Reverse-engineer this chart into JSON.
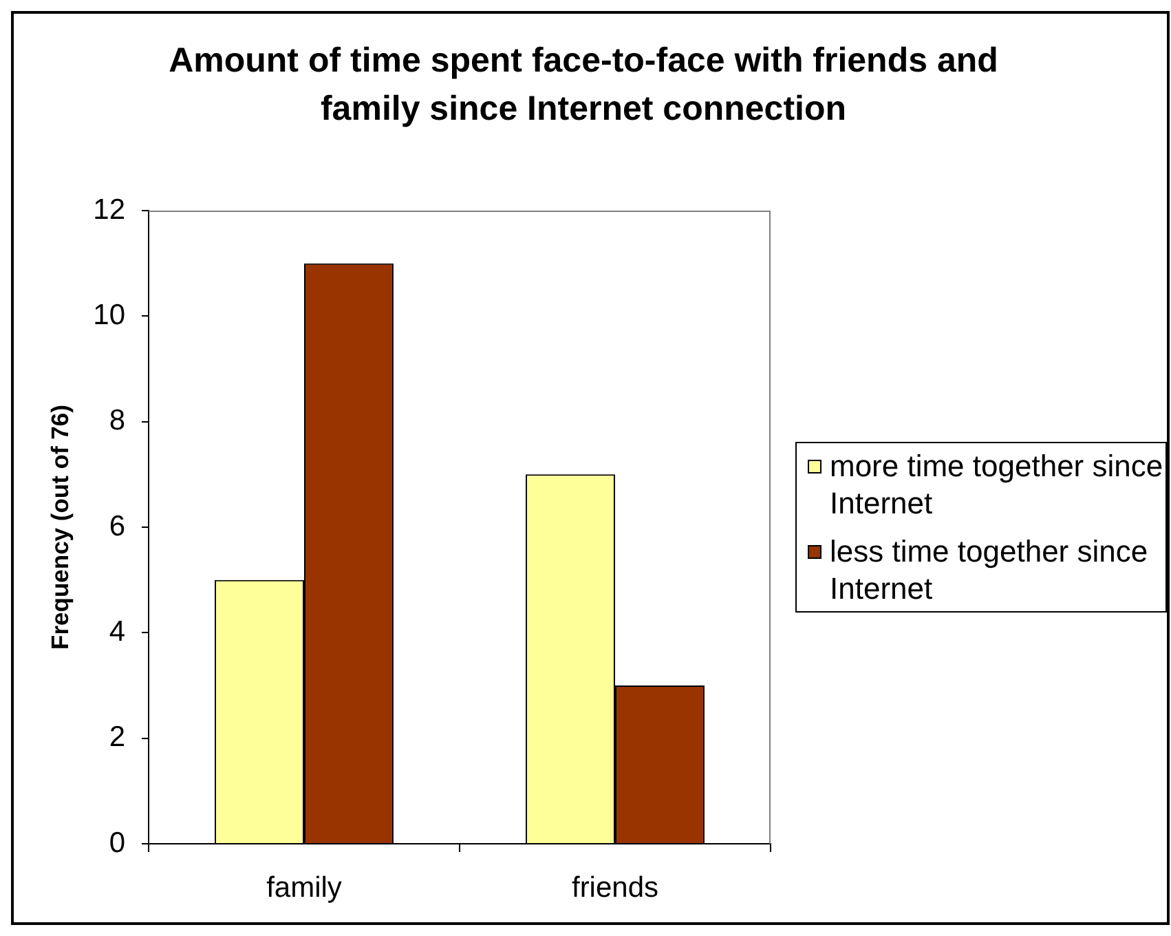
{
  "chart_data": {
    "type": "bar",
    "title": "Amount of time spent face-to-face with friends and family since Internet connection",
    "ylabel": "Frequency (out of 76)",
    "categories": [
      "family",
      "friends"
    ],
    "series": [
      {
        "name": "more time together since Internet",
        "color": "#ffff99",
        "values": [
          5,
          7
        ]
      },
      {
        "name": "less time together since Internet",
        "color": "#993300",
        "values": [
          11,
          3
        ]
      }
    ],
    "ylim": [
      0,
      12
    ],
    "yticks": [
      0,
      2,
      4,
      6,
      8,
      10,
      12
    ],
    "grid": false,
    "legend": "right"
  }
}
